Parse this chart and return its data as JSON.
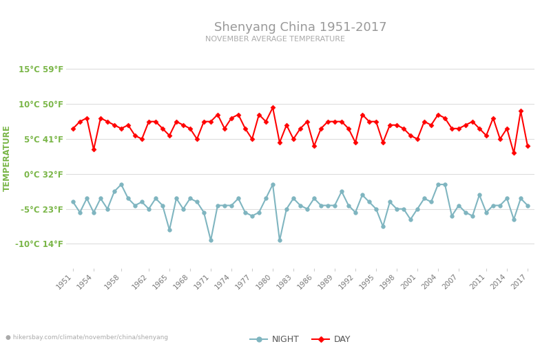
{
  "title": "Shenyang China 1951-2017",
  "subtitle": "NOVEMBER AVERAGE TEMPERATURE",
  "ylabel": "TEMPERATURE",
  "title_color": "#999999",
  "subtitle_color": "#aaaaaa",
  "ylabel_color": "#7ab648",
  "ytick_color": "#7ab648",
  "background_color": "#ffffff",
  "grid_color": "#dddddd",
  "years": [
    1951,
    1952,
    1953,
    1954,
    1955,
    1956,
    1957,
    1958,
    1959,
    1960,
    1961,
    1962,
    1963,
    1964,
    1965,
    1966,
    1967,
    1968,
    1969,
    1970,
    1971,
    1972,
    1973,
    1974,
    1975,
    1976,
    1977,
    1978,
    1979,
    1980,
    1981,
    1982,
    1983,
    1984,
    1985,
    1986,
    1987,
    1988,
    1989,
    1990,
    1991,
    1992,
    1993,
    1994,
    1995,
    1996,
    1997,
    1998,
    1999,
    2000,
    2001,
    2002,
    2003,
    2004,
    2005,
    2006,
    2007,
    2008,
    2009,
    2010,
    2011,
    2012,
    2013,
    2014,
    2015,
    2016,
    2017
  ],
  "day_temps": [
    6.5,
    7.5,
    8.0,
    3.5,
    8.0,
    7.5,
    7.0,
    6.5,
    7.0,
    5.5,
    5.0,
    7.5,
    7.5,
    6.5,
    5.5,
    7.5,
    7.0,
    6.5,
    5.0,
    7.5,
    7.5,
    8.5,
    6.5,
    8.0,
    8.5,
    6.5,
    5.0,
    8.5,
    7.5,
    9.5,
    4.5,
    7.0,
    5.0,
    6.5,
    7.5,
    4.0,
    6.5,
    7.5,
    7.5,
    7.5,
    6.5,
    4.5,
    8.5,
    7.5,
    7.5,
    4.5,
    7.0,
    7.0,
    6.5,
    5.5,
    5.0,
    7.5,
    7.0,
    8.5,
    8.0,
    6.5,
    6.5,
    7.0,
    7.5,
    6.5,
    5.5,
    8.0,
    5.0,
    6.5,
    3.0,
    9.0,
    4.0
  ],
  "night_temps": [
    -4.0,
    -5.5,
    -3.5,
    -5.5,
    -3.5,
    -5.0,
    -2.5,
    -1.5,
    -3.5,
    -4.5,
    -4.0,
    -5.0,
    -3.5,
    -4.5,
    -8.0,
    -3.5,
    -5.0,
    -3.5,
    -4.0,
    -5.5,
    -9.5,
    -4.5,
    -4.5,
    -4.5,
    -3.5,
    -5.5,
    -6.0,
    -5.5,
    -3.5,
    -1.5,
    -9.5,
    -5.0,
    -3.5,
    -4.5,
    -5.0,
    -3.5,
    -4.5,
    -4.5,
    -4.5,
    -2.5,
    -4.5,
    -5.5,
    -3.0,
    -4.0,
    -5.0,
    -7.5,
    -4.0,
    -5.0,
    -5.0,
    -6.5,
    -5.0,
    -3.5,
    -4.0,
    -1.5,
    -1.5,
    -6.0,
    -4.5,
    -5.5,
    -6.0,
    -3.0,
    -5.5,
    -4.5,
    -4.5,
    -3.5,
    -6.5,
    -3.5,
    -4.5
  ],
  "day_color": "#ff0000",
  "night_color": "#7fb5c0",
  "marker_size_day": 3.5,
  "marker_size_night": 4,
  "line_width": 1.5,
  "yticks_c": [
    -10,
    -5,
    0,
    5,
    10,
    15
  ],
  "yticks_f": [
    14,
    23,
    32,
    41,
    50,
    59
  ],
  "ylim": [
    -13.5,
    18
  ],
  "xlim": [
    1950,
    2018
  ],
  "xticks": [
    1951,
    1954,
    1958,
    1962,
    1965,
    1968,
    1971,
    1974,
    1977,
    1980,
    1983,
    1986,
    1989,
    1992,
    1995,
    1998,
    2001,
    2004,
    2007,
    2011,
    2014,
    2017
  ],
  "legend_night": "NIGHT",
  "legend_day": "DAY",
  "footer_text": "hikersbay.com/climate/november/china/shenyang",
  "footer_icon_color": "#f5c518"
}
